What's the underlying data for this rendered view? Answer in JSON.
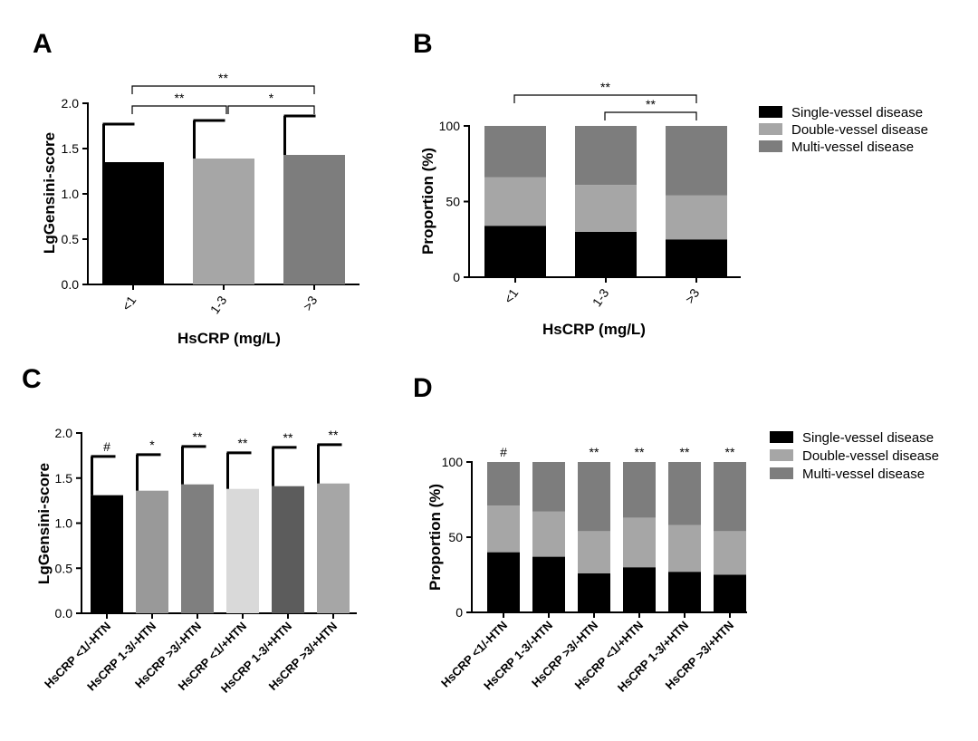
{
  "chart_data": [
    {
      "panel": "A",
      "type": "bar",
      "categories": [
        "<1",
        "1-3",
        ">3"
      ],
      "values": [
        1.35,
        1.39,
        1.43
      ],
      "errors": [
        0.42,
        0.42,
        0.43
      ],
      "colors": [
        "#000000",
        "#a6a6a6",
        "#7d7d7d"
      ],
      "xlabel": "HsCRP (mg/L)",
      "ylabel": "LgGensini-score",
      "ylim": [
        0,
        2.0
      ],
      "yticks": [
        "0.0",
        "0.5",
        "1.0",
        "1.5",
        "2.0"
      ],
      "significance": [
        {
          "from": 0,
          "to": 1,
          "label": "**"
        },
        {
          "from": 1,
          "to": 2,
          "label": "*"
        },
        {
          "from": 0,
          "to": 2,
          "label": "**"
        }
      ]
    },
    {
      "panel": "B",
      "type": "bar",
      "stacked": true,
      "categories": [
        "<1",
        "1-3",
        ">3"
      ],
      "series": [
        {
          "name": "Single-vessel disease",
          "color": "#000000",
          "values": [
            34,
            30,
            25
          ]
        },
        {
          "name": "Double-vessel disease",
          "color": "#a6a6a6",
          "values": [
            32,
            31,
            29
          ]
        },
        {
          "name": "Multi-vessel disease",
          "color": "#7d7d7d",
          "values": [
            34,
            39,
            46
          ]
        }
      ],
      "xlabel": "HsCRP (mg/L)",
      "ylabel": "Proportion (%)",
      "ylim": [
        0,
        100
      ],
      "yticks": [
        "0",
        "50",
        "100"
      ],
      "legend_position": "right",
      "significance": [
        {
          "from": 1,
          "to": 2,
          "label": "**"
        },
        {
          "from": 0,
          "to": 2,
          "label": "**"
        }
      ]
    },
    {
      "panel": "C",
      "type": "bar",
      "categories": [
        "HsCRP <1/-HTN",
        "HsCRP 1-3/-HTN",
        "HsCRP >3/-HTN",
        "HsCRP <1/+HTN",
        "HsCRP 1-3/+HTN",
        "HsCRP >3/+HTN"
      ],
      "values": [
        1.31,
        1.36,
        1.43,
        1.38,
        1.41,
        1.44
      ],
      "errors": [
        0.43,
        0.4,
        0.42,
        0.4,
        0.43,
        0.43
      ],
      "colors": [
        "#000000",
        "#999999",
        "#7f7f7f",
        "#d9d9d9",
        "#5c5c5c",
        "#a6a6a6"
      ],
      "ylabel": "LgGensini-score",
      "ylim": [
        0,
        2.0
      ],
      "yticks": [
        "0.0",
        "0.5",
        "1.0",
        "1.5",
        "2.0"
      ],
      "markers": [
        "#",
        "*",
        "**",
        "**",
        "**",
        "**"
      ]
    },
    {
      "panel": "D",
      "type": "bar",
      "stacked": true,
      "categories": [
        "HsCRP <1/-HTN",
        "HsCRP 1-3/-HTN",
        "HsCRP >3/-HTN",
        "HsCRP <1/+HTN",
        "HsCRP 1-3/+HTN",
        "HsCRP >3/+HTN"
      ],
      "series": [
        {
          "name": "Single-vessel disease",
          "color": "#000000",
          "values": [
            40,
            37,
            26,
            30,
            27,
            25
          ]
        },
        {
          "name": "Double-vessel disease",
          "color": "#a6a6a6",
          "values": [
            31,
            30,
            28,
            33,
            31,
            29
          ]
        },
        {
          "name": "Multi-vessel disease",
          "color": "#7d7d7d",
          "values": [
            29,
            33,
            46,
            37,
            42,
            46
          ]
        }
      ],
      "ylabel": "Proportion (%)",
      "ylim": [
        0,
        100
      ],
      "yticks": [
        "0",
        "50",
        "100"
      ],
      "legend_position": "right",
      "markers": [
        "#",
        "",
        "**",
        "**",
        "**",
        "**"
      ]
    }
  ]
}
